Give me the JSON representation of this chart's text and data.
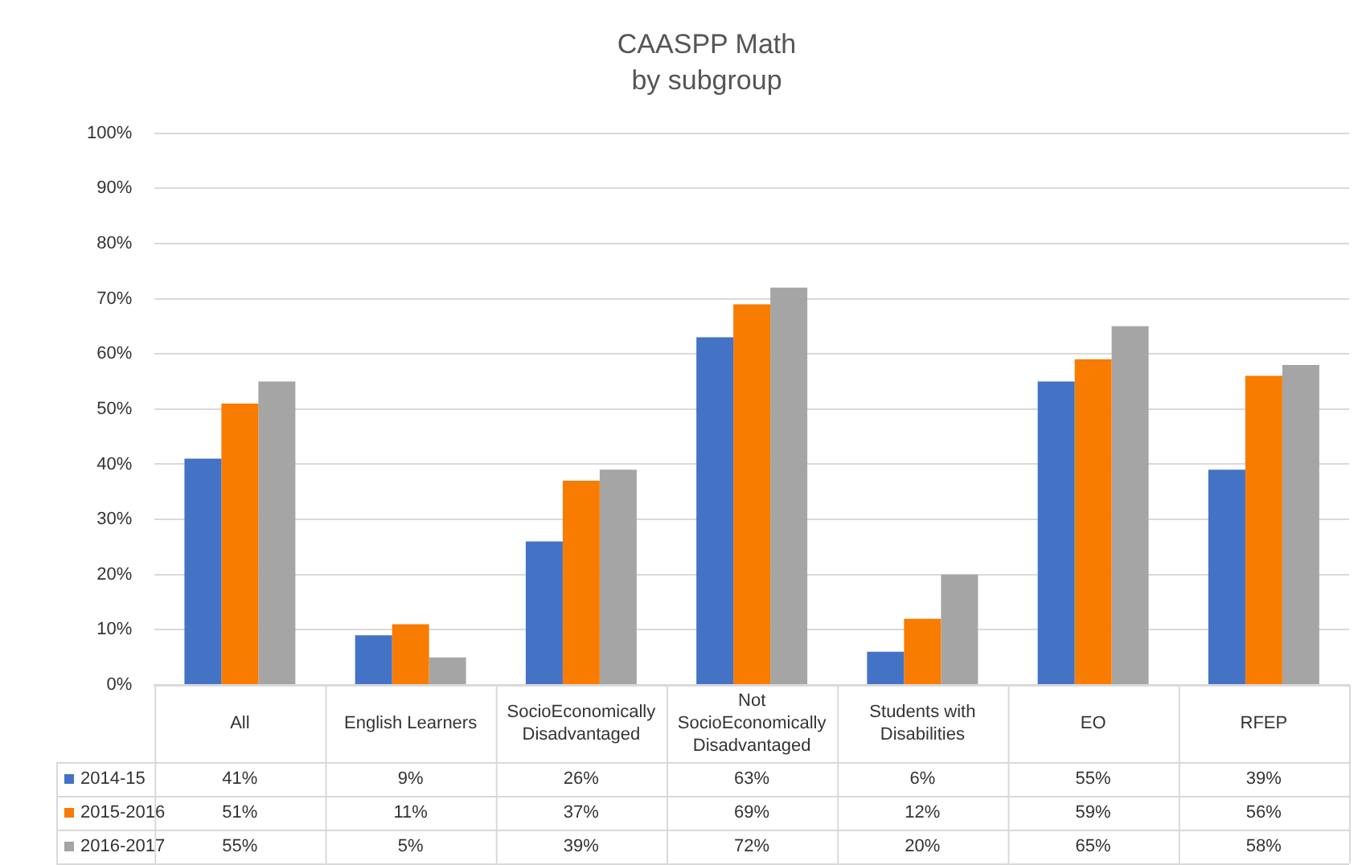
{
  "chart_data": {
    "type": "bar",
    "title": "CAASPP Math",
    "subtitle": "by subgroup",
    "categories": [
      "All",
      "English Learners",
      "SocioEconomically Disadvantaged",
      "Not SocioEconomically Disadvantaged",
      "Students with Disabilities",
      "EO",
      "RFEP"
    ],
    "series": [
      {
        "name": "2014-15",
        "color": "#4472c4",
        "values": [
          41,
          9,
          26,
          63,
          6,
          55,
          39
        ],
        "value_labels": [
          "41%",
          "9%",
          "26%",
          "63%",
          "6%",
          "55%",
          "39%"
        ]
      },
      {
        "name": "2015-2016",
        "color": "#f87c00",
        "values": [
          51,
          11,
          37,
          69,
          12,
          59,
          56
        ],
        "value_labels": [
          "51%",
          "11%",
          "37%",
          "69%",
          "12%",
          "59%",
          "56%"
        ]
      },
      {
        "name": "2016-2017",
        "color": "#a5a5a5",
        "values": [
          55,
          5,
          39,
          72,
          20,
          65,
          58
        ],
        "value_labels": [
          "55%",
          "5%",
          "39%",
          "72%",
          "20%",
          "65%",
          "58%"
        ]
      }
    ],
    "ylim": [
      0,
      100
    ],
    "yticks": [
      {
        "value": 0,
        "label": "0%"
      },
      {
        "value": 10,
        "label": "10%"
      },
      {
        "value": 20,
        "label": "20%"
      },
      {
        "value": 30,
        "label": "30%"
      },
      {
        "value": 40,
        "label": "40%"
      },
      {
        "value": 50,
        "label": "50%"
      },
      {
        "value": 60,
        "label": "60%"
      },
      {
        "value": 70,
        "label": "70%"
      },
      {
        "value": 80,
        "label": "80%"
      },
      {
        "value": 90,
        "label": "90%"
      },
      {
        "value": 100,
        "label": "100%"
      }
    ],
    "grid": "y",
    "legend": "bottom"
  }
}
